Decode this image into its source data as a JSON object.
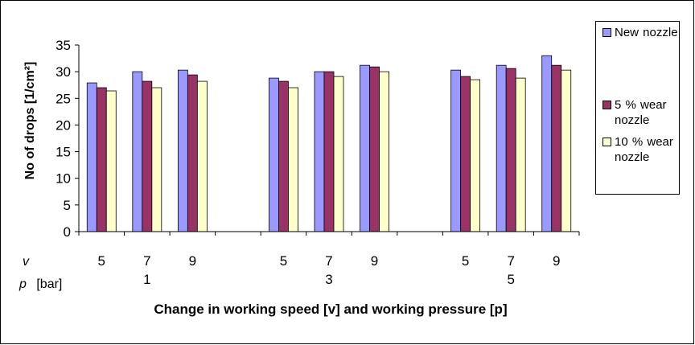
{
  "chart_data": {
    "type": "bar",
    "ylabel": "No of drops [1/cm²]",
    "xlabel": "Change in working speed [v] and working pressure [p]",
    "ylim": [
      0,
      35
    ],
    "ytick_step": 5,
    "yticks": [
      "0",
      "5",
      "10",
      "15",
      "20",
      "25",
      "30",
      "35"
    ],
    "row_labels": {
      "v": "v",
      "p": "p",
      "p_unit": "[bar]"
    },
    "groups": [
      {
        "p_label": "1",
        "v_labels": [
          "5",
          "7",
          "9"
        ]
      },
      {
        "p_label": "3",
        "v_labels": [
          "5",
          "7",
          "9"
        ]
      },
      {
        "p_label": "5",
        "v_labels": [
          "5",
          "7",
          "9"
        ]
      }
    ],
    "series": [
      {
        "name": "New nozzle",
        "color": "#9999ff",
        "values": [
          27.9,
          30.0,
          30.3,
          28.8,
          30.0,
          31.2,
          30.3,
          31.2,
          33.0
        ]
      },
      {
        "name": "5 % wear nozzle",
        "color": "#993366",
        "values": [
          27.0,
          28.2,
          29.4,
          28.2,
          30.0,
          30.9,
          29.1,
          30.6,
          31.2
        ]
      },
      {
        "name": "10 % wear nozzle",
        "color": "#ffffcc",
        "values": [
          26.4,
          27.0,
          28.2,
          27.0,
          29.1,
          30.0,
          28.5,
          28.8,
          30.3
        ]
      }
    ],
    "legend_position": "right",
    "grid": false
  }
}
